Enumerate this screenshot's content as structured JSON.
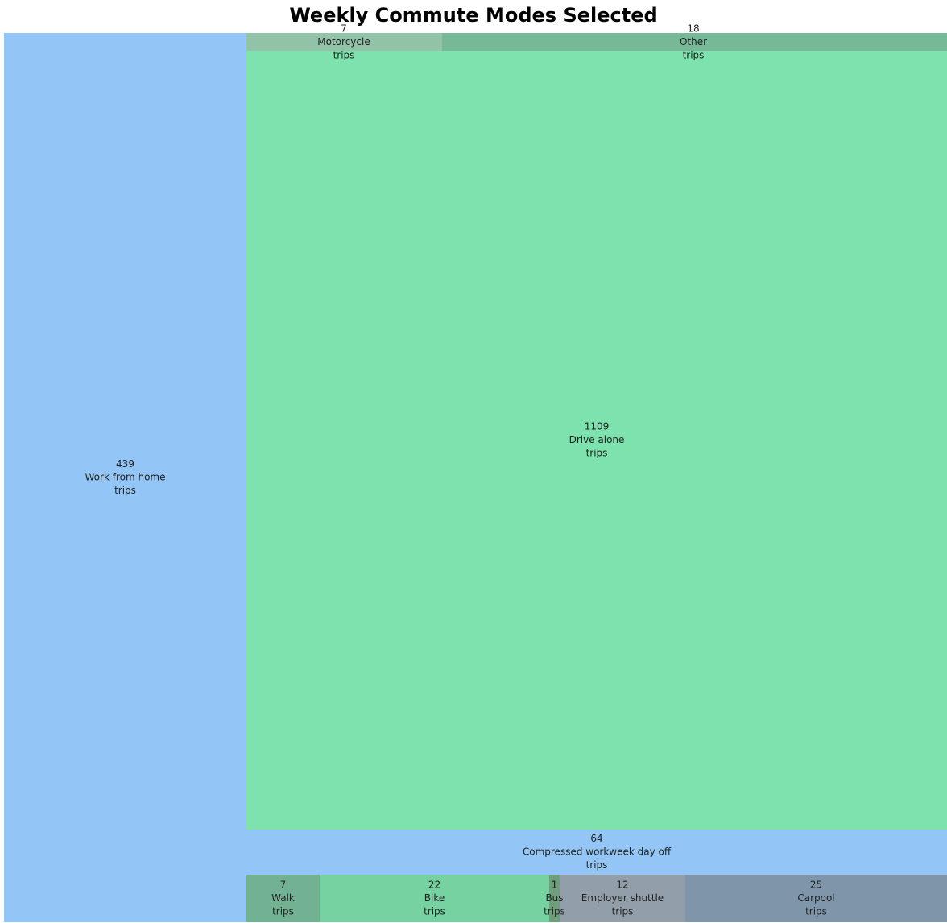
{
  "chart_data": {
    "type": "treemap",
    "title": "Weekly Commute Modes Selected",
    "unit_label": "trips",
    "items": [
      {
        "label": "Work from home",
        "value": 439,
        "color": "#93c6f6"
      },
      {
        "label": "Motorcycle",
        "value": 7,
        "color": "#92c2a7"
      },
      {
        "label": "Other",
        "value": 18,
        "color": "#76b898"
      },
      {
        "label": "Drive alone",
        "value": 1109,
        "color": "#7de2ad"
      },
      {
        "label": "Compressed workweek day off",
        "value": 64,
        "color": "#93c6f6"
      },
      {
        "label": "Walk",
        "value": 7,
        "color": "#72b292"
      },
      {
        "label": "Bike",
        "value": 22,
        "color": "#76d2a0"
      },
      {
        "label": "Bus",
        "value": 1,
        "color": "#6e9e7c"
      },
      {
        "label": "Employer shuttle",
        "value": 12,
        "color": "#929ea9"
      },
      {
        "label": "Carpool",
        "value": 25,
        "color": "#7e95aa"
      }
    ]
  }
}
